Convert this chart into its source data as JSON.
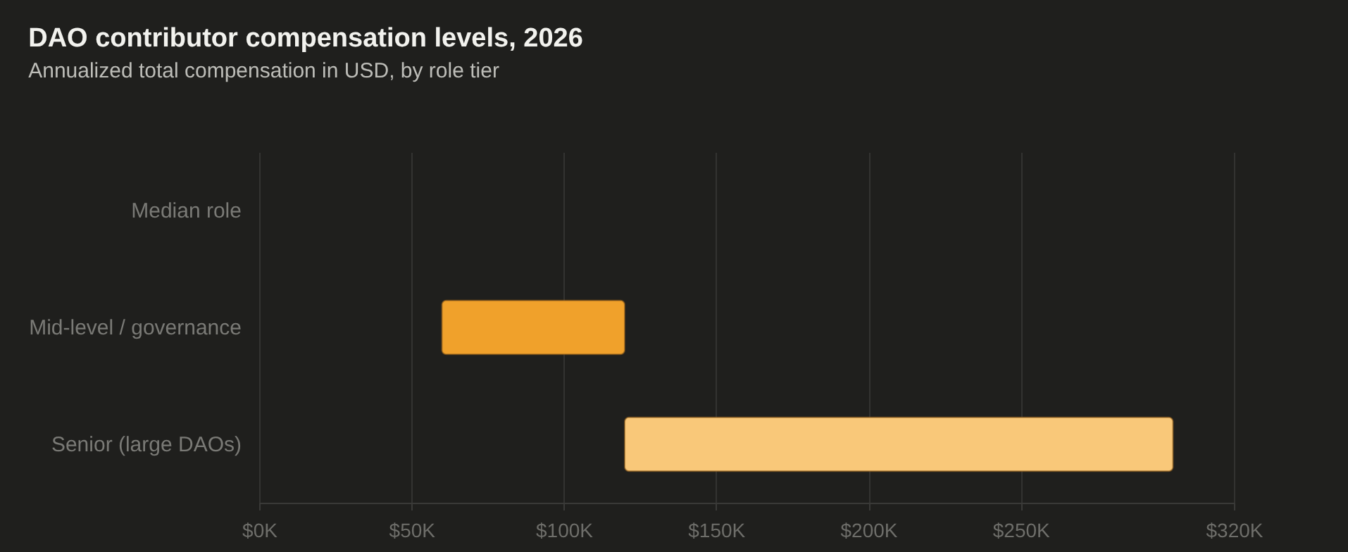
{
  "chart_data": {
    "type": "bar",
    "orientation": "horizontal",
    "title": "DAO contributor compensation levels, 2026",
    "subtitle": "Annualized total compensation in USD, by role tier",
    "categories": [
      "Median role",
      "Mid-level / governance",
      "Senior (large DAOs)"
    ],
    "base": [
      null,
      60000,
      120000
    ],
    "values": [
      null,
      60000,
      180000
    ],
    "colors": [
      "#f0a12b",
      "#f0a12b",
      "#f9c879"
    ],
    "xlim": [
      0,
      320000
    ],
    "xticks": [
      {
        "value": 0,
        "label": "$0K"
      },
      {
        "value": 50000,
        "label": "$50K"
      },
      {
        "value": 100000,
        "label": "$100K"
      },
      {
        "value": 150000,
        "label": "$150K"
      },
      {
        "value": 200000,
        "label": "$200K"
      },
      {
        "value": 250000,
        "label": "$250K"
      },
      {
        "value": 320000,
        "label": "$320K"
      }
    ],
    "grid": "x"
  }
}
